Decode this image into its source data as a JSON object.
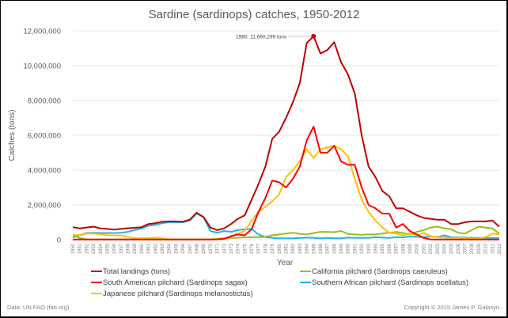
{
  "chart_data": {
    "type": "line",
    "title": "Sardine (sardinops) catches, 1950-2012",
    "xlabel": "Year",
    "ylabel": "Catches (tons)",
    "ylim": [
      0,
      12000000
    ],
    "yticks": [
      0,
      2000000,
      4000000,
      6000000,
      8000000,
      10000000,
      12000000
    ],
    "ytick_labels": [
      "0",
      "2,000,000",
      "4,000,000",
      "6,000,000",
      "8,000,000",
      "10,000,000",
      "12,000,000"
    ],
    "grid": true,
    "legend_position": "bottom",
    "x": [
      1950,
      1951,
      1952,
      1953,
      1954,
      1955,
      1956,
      1957,
      1958,
      1959,
      1960,
      1961,
      1962,
      1963,
      1964,
      1965,
      1966,
      1967,
      1968,
      1969,
      1970,
      1971,
      1972,
      1973,
      1974,
      1975,
      1976,
      1977,
      1978,
      1979,
      1980,
      1981,
      1982,
      1983,
      1984,
      1985,
      1986,
      1987,
      1988,
      1989,
      1990,
      1991,
      1992,
      1993,
      1994,
      1995,
      1996,
      1997,
      1998,
      1999,
      2000,
      2001,
      2002,
      2003,
      2004,
      2005,
      2006,
      2007,
      2008,
      2009,
      2010,
      2011,
      2012
    ],
    "series": [
      {
        "name": "Total landings (tons)",
        "color": "#c00000",
        "values": [
          720000,
          650000,
          700000,
          750000,
          650000,
          620000,
          580000,
          620000,
          660000,
          680000,
          720000,
          900000,
          950000,
          1030000,
          1050000,
          1050000,
          1030000,
          1150000,
          1550000,
          1300000,
          700000,
          550000,
          650000,
          900000,
          1200000,
          1400000,
          2300000,
          3200000,
          4200000,
          5800000,
          6200000,
          7000000,
          7900000,
          9000000,
          11300000,
          11690299,
          10700000,
          10900000,
          11350000,
          10200000,
          9500000,
          8400000,
          6000000,
          4200000,
          3600000,
          2800000,
          2500000,
          1800000,
          1800000,
          1600000,
          1400000,
          1250000,
          1200000,
          1150000,
          1150000,
          900000,
          900000,
          1000000,
          1050000,
          1050000,
          1050000,
          1100000,
          750000
        ]
      },
      {
        "name": "South American pilchard (Sardinops sagax)",
        "color": "#ff0000",
        "values": [
          10000,
          10000,
          10000,
          10000,
          10000,
          10000,
          10000,
          10000,
          10000,
          10000,
          10000,
          10000,
          10000,
          10000,
          10000,
          10000,
          10000,
          10000,
          10000,
          10000,
          10000,
          20000,
          50000,
          200000,
          300000,
          250000,
          600000,
          1600000,
          2400000,
          3400000,
          3300000,
          3000000,
          3500000,
          4200000,
          5700000,
          6500000,
          5000000,
          5000000,
          5400000,
          4500000,
          4300000,
          4300000,
          3000000,
          2000000,
          1800000,
          1500000,
          1500000,
          700000,
          900000,
          500000,
          300000,
          100000,
          20000,
          10000,
          10000,
          10000,
          10000,
          10000,
          10000,
          10000,
          10000,
          10000,
          10000
        ]
      },
      {
        "name": "California pilchard (Sardinops caeruleus)",
        "color": "#9bbb21",
        "values": [
          250000,
          100000,
          20000,
          10000,
          10000,
          10000,
          10000,
          10000,
          10000,
          10000,
          10000,
          10000,
          10000,
          10000,
          10000,
          10000,
          10000,
          10000,
          10000,
          10000,
          20000,
          50000,
          80000,
          100000,
          110000,
          130000,
          140000,
          140000,
          160000,
          250000,
          300000,
          350000,
          400000,
          330000,
          300000,
          380000,
          450000,
          450000,
          430000,
          500000,
          330000,
          300000,
          280000,
          300000,
          300000,
          350000,
          400000,
          450000,
          380000,
          300000,
          450000,
          550000,
          700000,
          750000,
          650000,
          600000,
          400000,
          350000,
          550000,
          750000,
          700000,
          650000,
          350000
        ]
      },
      {
        "name": "Southern African pilchard (Sardinops ocellatus)",
        "color": "#1fb4e8",
        "values": [
          130000,
          250000,
          380000,
          400000,
          380000,
          380000,
          380000,
          400000,
          450000,
          550000,
          650000,
          800000,
          850000,
          950000,
          1000000,
          1000000,
          1000000,
          1100000,
          1500000,
          1300000,
          500000,
          400000,
          500000,
          450000,
          550000,
          600000,
          620000,
          300000,
          150000,
          100000,
          80000,
          80000,
          80000,
          100000,
          120000,
          100000,
          80000,
          100000,
          80000,
          80000,
          120000,
          100000,
          100000,
          100000,
          150000,
          120000,
          100000,
          150000,
          130000,
          180000,
          160000,
          150000,
          180000,
          150000,
          250000,
          150000,
          130000,
          120000,
          100000,
          100000,
          100000,
          100000,
          100000
        ]
      },
      {
        "name": "Japanese pilchard (Sardinops melanostictus)",
        "color": "#ffc000",
        "values": [
          300000,
          250000,
          350000,
          350000,
          300000,
          250000,
          250000,
          250000,
          150000,
          100000,
          80000,
          100000,
          120000,
          80000,
          20000,
          10000,
          10000,
          10000,
          10000,
          10000,
          20000,
          30000,
          50000,
          200000,
          350000,
          500000,
          1100000,
          1600000,
          1900000,
          2200000,
          2600000,
          3600000,
          4000000,
          4500000,
          5200000,
          4700000,
          5200000,
          5300000,
          5400000,
          5200000,
          4800000,
          3500000,
          2300000,
          1600000,
          1100000,
          700000,
          400000,
          350000,
          250000,
          350000,
          250000,
          400000,
          200000,
          150000,
          120000,
          100000,
          100000,
          80000,
          60000,
          70000,
          150000,
          350000,
          300000
        ]
      }
    ],
    "annotation": {
      "text": "1985: 11,690,299 tons",
      "x": 1985,
      "y": 11690299,
      "series": "Total landings (tons)"
    },
    "footer_left": "Data: UN FAO (fao.org)",
    "footer_right": "Copyright © 2015 James P. Galasyn"
  }
}
